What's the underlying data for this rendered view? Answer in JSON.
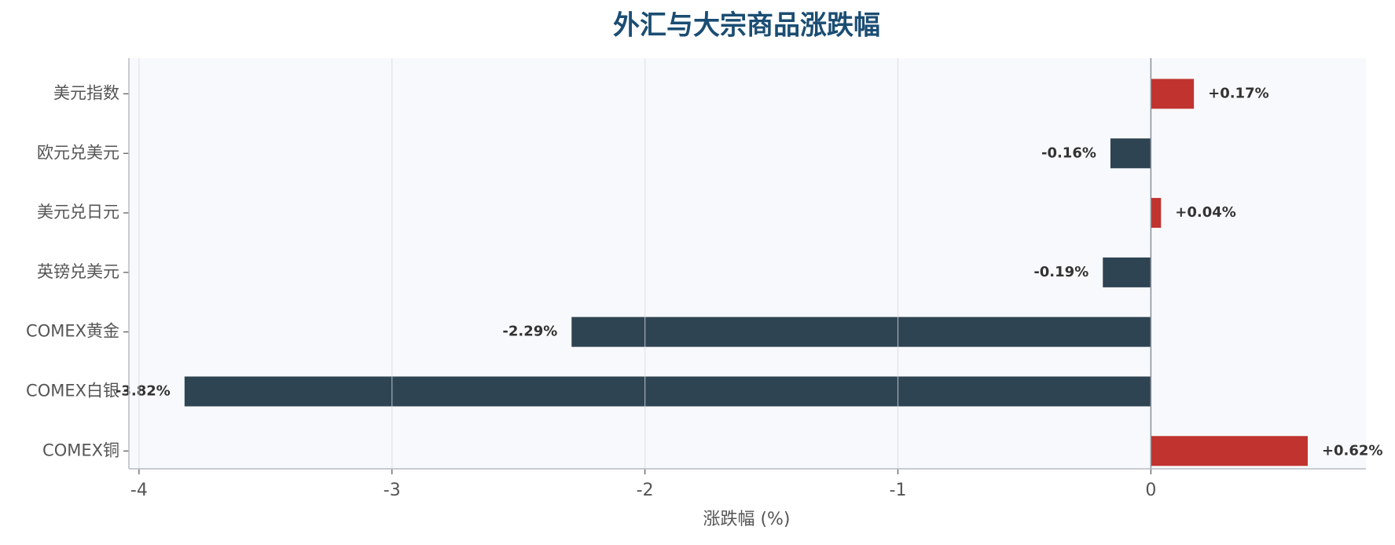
{
  "chart_data": {
    "type": "barh",
    "title": "外汇与大宗商品涨跌幅",
    "xlabel": "涨跌幅 (%)",
    "categories": [
      "美元指数",
      "欧元兑美元",
      "美元兑日元",
      "英镑兑美元",
      "COMEX黄金",
      "COMEX白银",
      "COMEX铜"
    ],
    "values": [
      0.17,
      -0.16,
      0.04,
      -0.19,
      -2.29,
      -3.82,
      0.62
    ],
    "value_labels": [
      "+0.17%",
      "-0.16%",
      "+0.04%",
      "-0.19%",
      "-2.29%",
      "-3.82%",
      "+0.62%"
    ],
    "positive_color": "#c0332f",
    "negative_color": "#2e4453",
    "xlim": [
      -4.04,
      0.85
    ],
    "xticks": [
      -4,
      -3,
      -2,
      -1,
      0
    ],
    "grid": true
  }
}
